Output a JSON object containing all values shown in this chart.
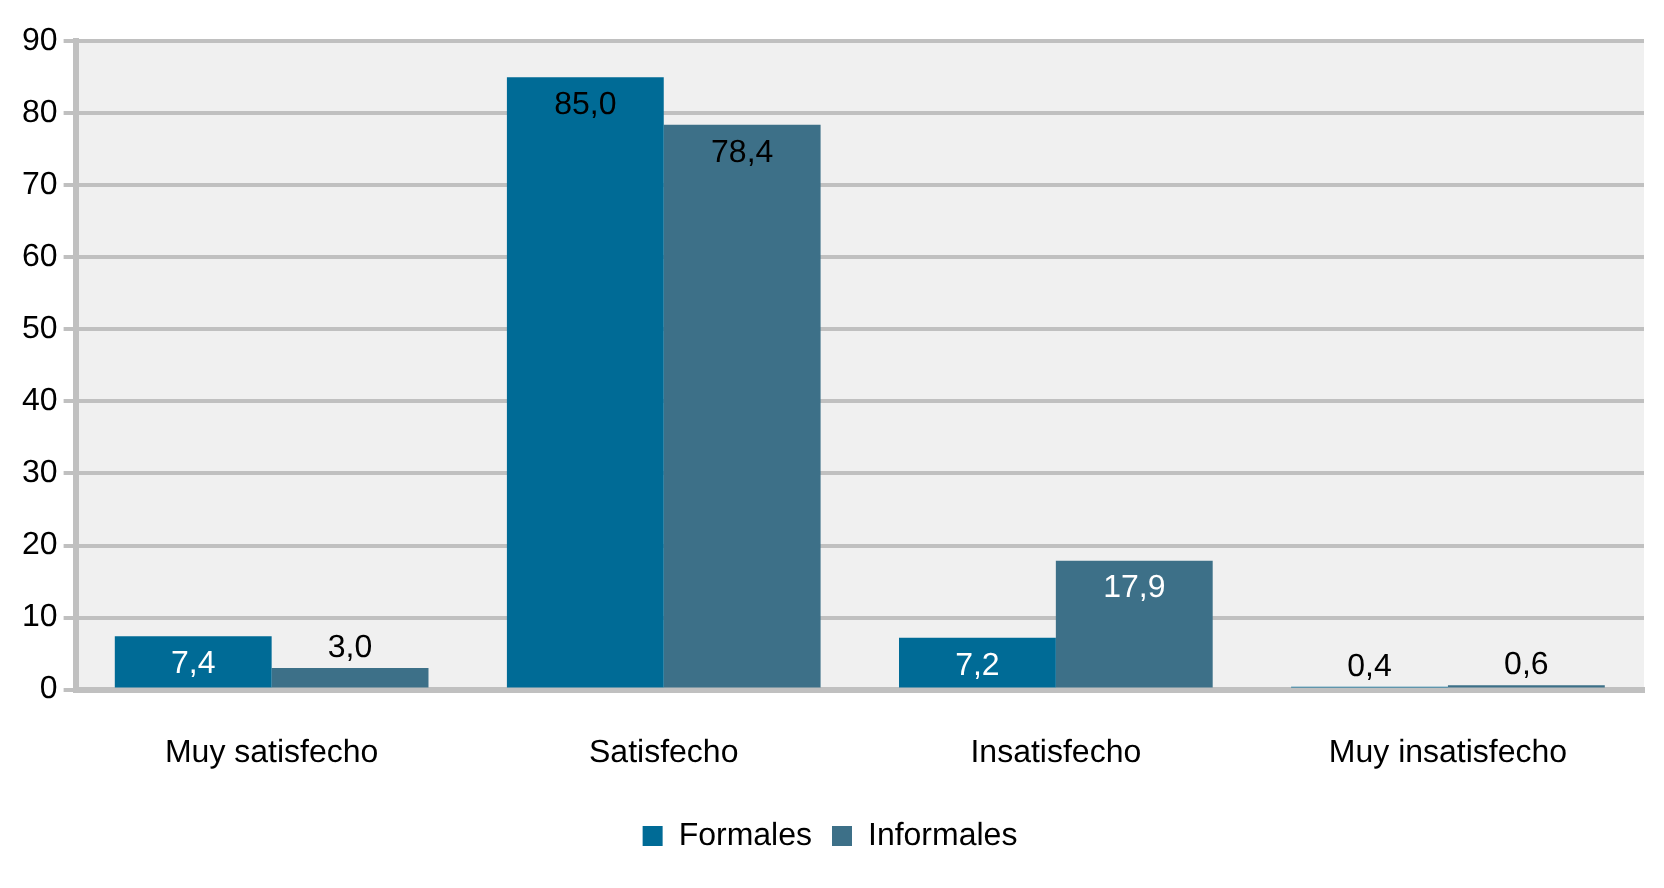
{
  "chart_data": {
    "type": "bar",
    "categories": [
      "Muy satisfecho",
      "Satisfecho",
      "Insatisfecho",
      "Muy insatisfecho"
    ],
    "series": [
      {
        "name": "Formales",
        "color": "#006b96",
        "values": [
          7.4,
          85.0,
          7.2,
          0.4
        ],
        "value_labels": [
          "7,4",
          "85,0",
          "7,2",
          "0,4"
        ]
      },
      {
        "name": "Informales",
        "color": "#3d7088",
        "values": [
          3.0,
          78.4,
          17.9,
          0.6
        ],
        "value_labels": [
          "3,0",
          "78,4",
          "17,9",
          "0,6"
        ]
      }
    ],
    "ylim": [
      0,
      90
    ],
    "yticks": [
      0,
      10,
      20,
      30,
      40,
      50,
      60,
      70,
      80,
      90
    ],
    "grid": "y",
    "legend": "bottom"
  }
}
